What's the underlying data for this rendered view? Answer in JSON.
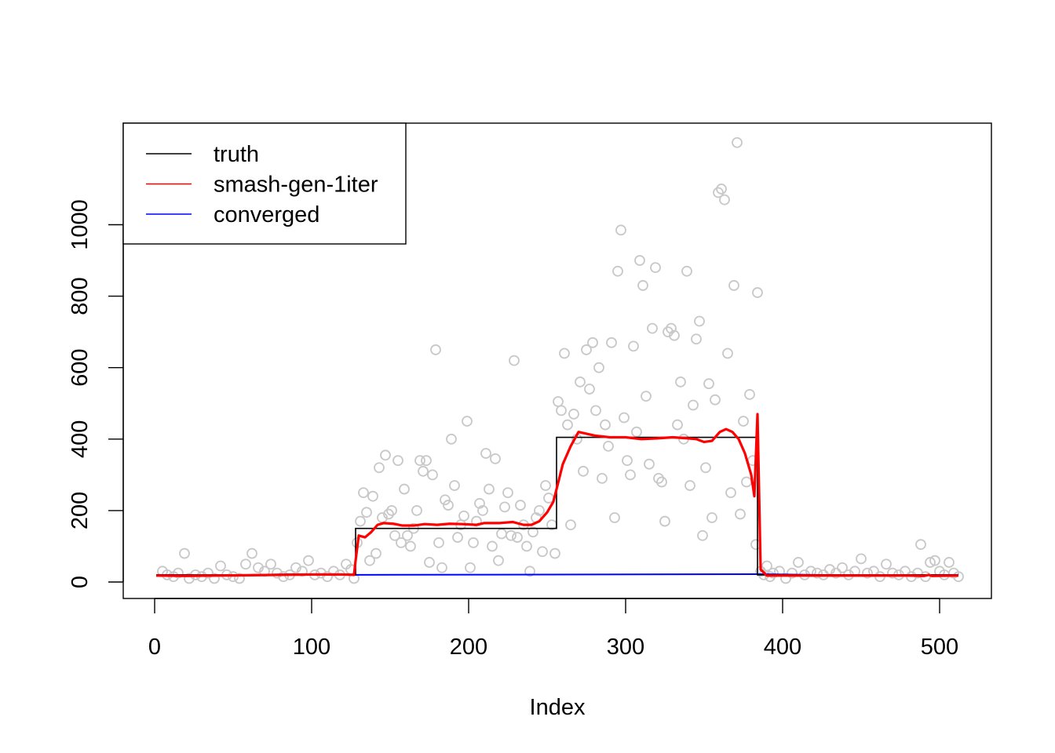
{
  "chart_data": {
    "type": "scatter",
    "title": "",
    "xlabel": "Index",
    "ylabel": "",
    "xlim": [
      0,
      512
    ],
    "ylim": [
      0,
      1100
    ],
    "xticks": [
      0,
      100,
      200,
      300,
      400,
      500
    ],
    "yticks": [
      0,
      200,
      400,
      600,
      800,
      1000
    ],
    "xtick_labels": [
      "0",
      "100",
      "200",
      "300",
      "400",
      "500"
    ],
    "ytick_labels": [
      "0",
      "200",
      "400",
      "600",
      "800",
      "1000"
    ],
    "grid": false,
    "legend_position": "top-left",
    "colors": {
      "points": "#c8c8c8",
      "truth": "#000000",
      "smash": "#ff0000",
      "converged": "#0000ff"
    },
    "series": [
      {
        "name": "truth",
        "kind": "step",
        "segments": [
          {
            "x0": 1,
            "x1": 128,
            "y": 20
          },
          {
            "x0": 128,
            "x1": 256,
            "y": 150
          },
          {
            "x0": 256,
            "x1": 384,
            "y": 405
          },
          {
            "x0": 384,
            "x1": 512,
            "y": 20
          }
        ]
      },
      {
        "name": "smash-gen-1iter",
        "kind": "line",
        "points": [
          [
            1,
            18
          ],
          [
            20,
            17
          ],
          [
            40,
            18
          ],
          [
            60,
            19
          ],
          [
            80,
            20
          ],
          [
            100,
            21
          ],
          [
            120,
            21
          ],
          [
            127,
            20
          ],
          [
            128,
            60
          ],
          [
            130,
            130
          ],
          [
            134,
            125
          ],
          [
            138,
            140
          ],
          [
            142,
            160
          ],
          [
            146,
            165
          ],
          [
            152,
            163
          ],
          [
            158,
            158
          ],
          [
            165,
            158
          ],
          [
            172,
            162
          ],
          [
            180,
            160
          ],
          [
            188,
            163
          ],
          [
            196,
            162
          ],
          [
            205,
            160
          ],
          [
            210,
            165
          ],
          [
            220,
            165
          ],
          [
            228,
            168
          ],
          [
            235,
            160
          ],
          [
            240,
            160
          ],
          [
            245,
            170
          ],
          [
            250,
            195
          ],
          [
            254,
            225
          ],
          [
            256,
            260
          ],
          [
            260,
            330
          ],
          [
            265,
            380
          ],
          [
            270,
            420
          ],
          [
            275,
            415
          ],
          [
            280,
            410
          ],
          [
            290,
            405
          ],
          [
            300,
            405
          ],
          [
            310,
            400
          ],
          [
            320,
            402
          ],
          [
            330,
            405
          ],
          [
            340,
            402
          ],
          [
            345,
            400
          ],
          [
            350,
            392
          ],
          [
            355,
            395
          ],
          [
            360,
            420
          ],
          [
            364,
            428
          ],
          [
            368,
            420
          ],
          [
            372,
            400
          ],
          [
            376,
            360
          ],
          [
            380,
            300
          ],
          [
            382,
            240
          ],
          [
            384,
            470
          ],
          [
            386,
            35
          ],
          [
            390,
            18
          ],
          [
            400,
            18
          ],
          [
            420,
            18
          ],
          [
            440,
            18
          ],
          [
            460,
            18
          ],
          [
            480,
            18
          ],
          [
            490,
            17
          ],
          [
            493,
            20
          ],
          [
            495,
            17
          ],
          [
            512,
            18
          ]
        ]
      },
      {
        "name": "converged",
        "kind": "line",
        "points": [
          [
            1,
            20
          ],
          [
            30,
            19
          ],
          [
            60,
            20
          ],
          [
            90,
            22
          ],
          [
            110,
            21
          ],
          [
            127,
            20
          ],
          [
            386,
            22
          ],
          [
            420,
            20
          ],
          [
            460,
            19
          ],
          [
            512,
            20
          ]
        ]
      }
    ],
    "scatter_points": [
      [
        5,
        30
      ],
      [
        8,
        20
      ],
      [
        12,
        15
      ],
      [
        15,
        25
      ],
      [
        19,
        80
      ],
      [
        22,
        10
      ],
      [
        26,
        20
      ],
      [
        30,
        15
      ],
      [
        34,
        25
      ],
      [
        38,
        10
      ],
      [
        42,
        45
      ],
      [
        46,
        20
      ],
      [
        50,
        15
      ],
      [
        54,
        10
      ],
      [
        58,
        50
      ],
      [
        62,
        80
      ],
      [
        66,
        40
      ],
      [
        70,
        30
      ],
      [
        74,
        50
      ],
      [
        78,
        25
      ],
      [
        82,
        15
      ],
      [
        86,
        20
      ],
      [
        90,
        40
      ],
      [
        94,
        30
      ],
      [
        98,
        60
      ],
      [
        102,
        20
      ],
      [
        106,
        25
      ],
      [
        110,
        15
      ],
      [
        114,
        30
      ],
      [
        118,
        20
      ],
      [
        122,
        50
      ],
      [
        125,
        35
      ],
      [
        127,
        10
      ],
      [
        129,
        110
      ],
      [
        131,
        170
      ],
      [
        133,
        250
      ],
      [
        135,
        195
      ],
      [
        137,
        60
      ],
      [
        139,
        240
      ],
      [
        141,
        80
      ],
      [
        143,
        320
      ],
      [
        145,
        180
      ],
      [
        147,
        355
      ],
      [
        149,
        190
      ],
      [
        151,
        200
      ],
      [
        153,
        130
      ],
      [
        155,
        340
      ],
      [
        157,
        110
      ],
      [
        159,
        260
      ],
      [
        161,
        130
      ],
      [
        163,
        100
      ],
      [
        165,
        150
      ],
      [
        167,
        200
      ],
      [
        169,
        340
      ],
      [
        171,
        310
      ],
      [
        173,
        340
      ],
      [
        175,
        55
      ],
      [
        177,
        300
      ],
      [
        179,
        650
      ],
      [
        181,
        110
      ],
      [
        183,
        40
      ],
      [
        185,
        230
      ],
      [
        187,
        215
      ],
      [
        189,
        400
      ],
      [
        191,
        270
      ],
      [
        193,
        125
      ],
      [
        195,
        160
      ],
      [
        197,
        185
      ],
      [
        199,
        450
      ],
      [
        201,
        40
      ],
      [
        203,
        110
      ],
      [
        205,
        170
      ],
      [
        207,
        220
      ],
      [
        209,
        200
      ],
      [
        211,
        360
      ],
      [
        213,
        260
      ],
      [
        215,
        100
      ],
      [
        217,
        345
      ],
      [
        219,
        60
      ],
      [
        221,
        135
      ],
      [
        223,
        210
      ],
      [
        225,
        250
      ],
      [
        227,
        130
      ],
      [
        229,
        620
      ],
      [
        231,
        125
      ],
      [
        233,
        215
      ],
      [
        235,
        160
      ],
      [
        237,
        100
      ],
      [
        239,
        30
      ],
      [
        241,
        140
      ],
      [
        243,
        180
      ],
      [
        245,
        200
      ],
      [
        247,
        85
      ],
      [
        249,
        270
      ],
      [
        251,
        235
      ],
      [
        253,
        160
      ],
      [
        255,
        80
      ],
      [
        257,
        505
      ],
      [
        259,
        480
      ],
      [
        261,
        640
      ],
      [
        263,
        440
      ],
      [
        265,
        160
      ],
      [
        267,
        470
      ],
      [
        269,
        400
      ],
      [
        271,
        560
      ],
      [
        273,
        310
      ],
      [
        275,
        650
      ],
      [
        277,
        540
      ],
      [
        279,
        670
      ],
      [
        281,
        480
      ],
      [
        283,
        600
      ],
      [
        285,
        290
      ],
      [
        287,
        440
      ],
      [
        289,
        380
      ],
      [
        291,
        670
      ],
      [
        293,
        180
      ],
      [
        295,
        870
      ],
      [
        297,
        985
      ],
      [
        299,
        460
      ],
      [
        301,
        340
      ],
      [
        303,
        300
      ],
      [
        305,
        660
      ],
      [
        307,
        420
      ],
      [
        309,
        900
      ],
      [
        311,
        830
      ],
      [
        313,
        520
      ],
      [
        315,
        330
      ],
      [
        317,
        710
      ],
      [
        319,
        880
      ],
      [
        321,
        290
      ],
      [
        323,
        280
      ],
      [
        325,
        170
      ],
      [
        327,
        700
      ],
      [
        329,
        710
      ],
      [
        331,
        690
      ],
      [
        333,
        440
      ],
      [
        335,
        560
      ],
      [
        337,
        400
      ],
      [
        339,
        870
      ],
      [
        341,
        270
      ],
      [
        343,
        495
      ],
      [
        345,
        680
      ],
      [
        347,
        730
      ],
      [
        349,
        130
      ],
      [
        351,
        320
      ],
      [
        353,
        555
      ],
      [
        355,
        180
      ],
      [
        357,
        510
      ],
      [
        359,
        1090
      ],
      [
        361,
        1100
      ],
      [
        363,
        1070
      ],
      [
        365,
        640
      ],
      [
        367,
        250
      ],
      [
        369,
        830
      ],
      [
        371,
        1230
      ],
      [
        373,
        190
      ],
      [
        375,
        450
      ],
      [
        377,
        280
      ],
      [
        379,
        525
      ],
      [
        381,
        340
      ],
      [
        383,
        105
      ],
      [
        384,
        810
      ],
      [
        386,
        30
      ],
      [
        388,
        20
      ],
      [
        390,
        45
      ],
      [
        392,
        15
      ],
      [
        394,
        25
      ],
      [
        398,
        30
      ],
      [
        402,
        10
      ],
      [
        406,
        25
      ],
      [
        410,
        55
      ],
      [
        414,
        20
      ],
      [
        418,
        30
      ],
      [
        422,
        25
      ],
      [
        426,
        20
      ],
      [
        430,
        35
      ],
      [
        434,
        25
      ],
      [
        438,
        40
      ],
      [
        442,
        20
      ],
      [
        446,
        30
      ],
      [
        450,
        65
      ],
      [
        454,
        25
      ],
      [
        458,
        30
      ],
      [
        462,
        15
      ],
      [
        466,
        50
      ],
      [
        470,
        25
      ],
      [
        474,
        20
      ],
      [
        478,
        30
      ],
      [
        482,
        15
      ],
      [
        486,
        25
      ],
      [
        488,
        105
      ],
      [
        491,
        15
      ],
      [
        494,
        55
      ],
      [
        497,
        60
      ],
      [
        500,
        30
      ],
      [
        503,
        20
      ],
      [
        506,
        55
      ],
      [
        509,
        25
      ],
      [
        512,
        15
      ]
    ]
  }
}
